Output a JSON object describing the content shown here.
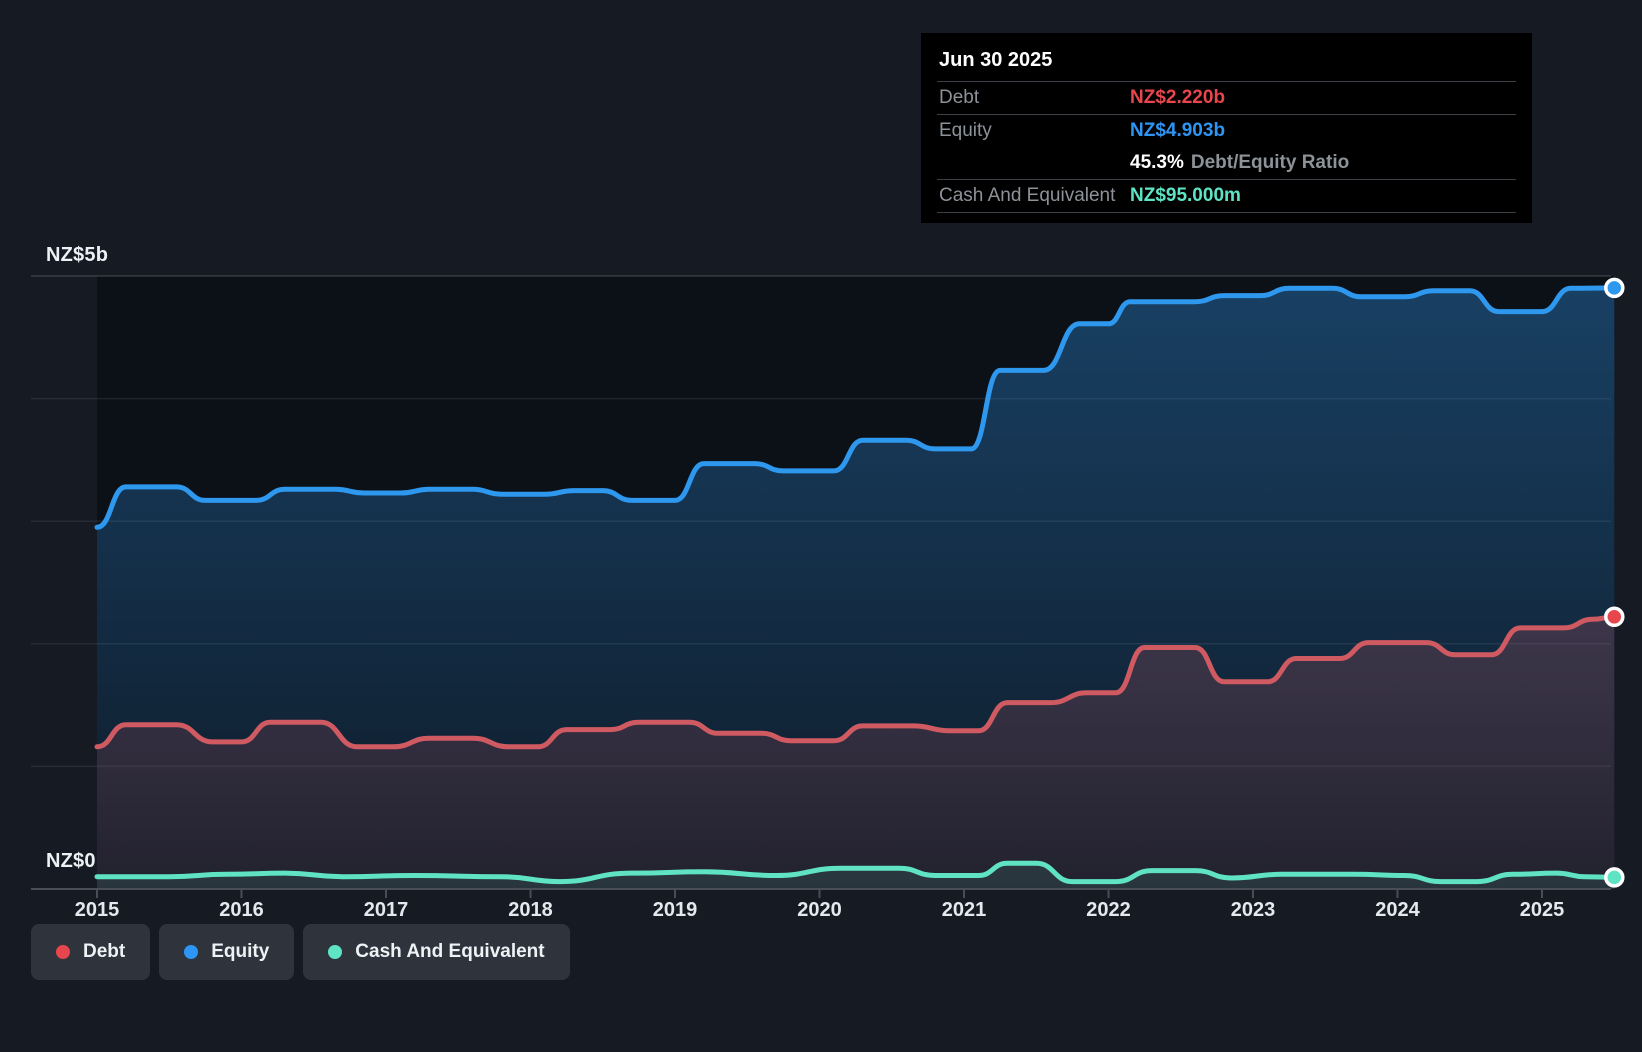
{
  "tooltip": {
    "date": "Jun 30 2025",
    "debt_label": "Debt",
    "debt_value": "NZ$2.220b",
    "equity_label": "Equity",
    "equity_value": "NZ$4.903b",
    "ratio_value": "45.3%",
    "ratio_label": "Debt/Equity Ratio",
    "cash_label": "Cash And Equivalent",
    "cash_value": "NZ$95.000m"
  },
  "legend": {
    "debt": "Debt",
    "equity": "Equity",
    "cash": "Cash And Equivalent"
  },
  "colors": {
    "debt_accent": "#e8464d",
    "debt_line": "#d05a62",
    "equity_accent": "#2d96f5",
    "equity_line": "#2e97ee",
    "cash_accent": "#5ee4c5",
    "cash_line": "#5fe3c3",
    "page_background": "#151a23",
    "plot_background": "#0c1017",
    "tooltip_background": "#000000"
  },
  "y_axis": {
    "top_label": "NZ$5b",
    "bottom_label": "NZ$0"
  },
  "chart_data": {
    "type": "area",
    "x_unit": "decimal_year",
    "y_unit": "NZ$ billions",
    "ylim": [
      0,
      5
    ],
    "grid": "horizontal, every NZ$1b (only NZ$5b and NZ$0 labeled)",
    "legend_position": "bottom-left",
    "x_ticks": [
      "2015",
      "2016",
      "2017",
      "2018",
      "2019",
      "2020",
      "2021",
      "2022",
      "2023",
      "2024",
      "2025"
    ],
    "y_tick_labels": {
      "top": "NZ$5b",
      "bottom": "NZ$0"
    },
    "end_of_data": 2025.5,
    "series": [
      {
        "name": "Equity",
        "line_color": "#2e97ee",
        "dot_color": "#2e97ee",
        "final_value_label": "NZ$4.903b",
        "points": [
          [
            2015.0,
            2.95
          ],
          [
            2015.2,
            3.28
          ],
          [
            2015.55,
            3.28
          ],
          [
            2015.75,
            3.17
          ],
          [
            2016.1,
            3.17
          ],
          [
            2016.3,
            3.26
          ],
          [
            2016.65,
            3.26
          ],
          [
            2016.85,
            3.23
          ],
          [
            2017.1,
            3.23
          ],
          [
            2017.3,
            3.26
          ],
          [
            2017.6,
            3.26
          ],
          [
            2017.8,
            3.22
          ],
          [
            2018.1,
            3.22
          ],
          [
            2018.3,
            3.25
          ],
          [
            2018.5,
            3.25
          ],
          [
            2018.7,
            3.17
          ],
          [
            2019.0,
            3.17
          ],
          [
            2019.2,
            3.47
          ],
          [
            2019.55,
            3.47
          ],
          [
            2019.75,
            3.41
          ],
          [
            2020.1,
            3.41
          ],
          [
            2020.3,
            3.66
          ],
          [
            2020.6,
            3.66
          ],
          [
            2020.8,
            3.59
          ],
          [
            2021.05,
            3.59
          ],
          [
            2021.25,
            4.23
          ],
          [
            2021.55,
            4.23
          ],
          [
            2021.8,
            4.61
          ],
          [
            2022.0,
            4.61
          ],
          [
            2022.15,
            4.79
          ],
          [
            2022.6,
            4.79
          ],
          [
            2022.8,
            4.84
          ],
          [
            2023.05,
            4.84
          ],
          [
            2023.25,
            4.9
          ],
          [
            2023.55,
            4.9
          ],
          [
            2023.75,
            4.83
          ],
          [
            2024.05,
            4.83
          ],
          [
            2024.25,
            4.88
          ],
          [
            2024.5,
            4.88
          ],
          [
            2024.7,
            4.71
          ],
          [
            2025.0,
            4.71
          ],
          [
            2025.2,
            4.9
          ],
          [
            2025.5,
            4.903
          ]
        ]
      },
      {
        "name": "Debt",
        "line_color": "#d05a62",
        "dot_color": "#e8464d",
        "final_value_label": "NZ$2.220b",
        "points": [
          [
            2015.0,
            1.16
          ],
          [
            2015.2,
            1.34
          ],
          [
            2015.55,
            1.34
          ],
          [
            2015.8,
            1.2
          ],
          [
            2016.0,
            1.2
          ],
          [
            2016.2,
            1.36
          ],
          [
            2016.55,
            1.36
          ],
          [
            2016.8,
            1.16
          ],
          [
            2017.05,
            1.16
          ],
          [
            2017.3,
            1.23
          ],
          [
            2017.6,
            1.23
          ],
          [
            2017.85,
            1.16
          ],
          [
            2018.05,
            1.16
          ],
          [
            2018.25,
            1.3
          ],
          [
            2018.55,
            1.3
          ],
          [
            2018.75,
            1.36
          ],
          [
            2019.1,
            1.36
          ],
          [
            2019.3,
            1.27
          ],
          [
            2019.6,
            1.27
          ],
          [
            2019.8,
            1.21
          ],
          [
            2020.1,
            1.21
          ],
          [
            2020.3,
            1.33
          ],
          [
            2020.65,
            1.33
          ],
          [
            2020.9,
            1.29
          ],
          [
            2021.1,
            1.29
          ],
          [
            2021.3,
            1.52
          ],
          [
            2021.6,
            1.52
          ],
          [
            2021.85,
            1.6
          ],
          [
            2022.05,
            1.6
          ],
          [
            2022.25,
            1.97
          ],
          [
            2022.6,
            1.97
          ],
          [
            2022.8,
            1.69
          ],
          [
            2023.1,
            1.69
          ],
          [
            2023.3,
            1.88
          ],
          [
            2023.6,
            1.88
          ],
          [
            2023.8,
            2.01
          ],
          [
            2024.2,
            2.01
          ],
          [
            2024.4,
            1.91
          ],
          [
            2024.65,
            1.91
          ],
          [
            2024.85,
            2.13
          ],
          [
            2025.15,
            2.13
          ],
          [
            2025.35,
            2.2
          ],
          [
            2025.5,
            2.22
          ]
        ]
      },
      {
        "name": "Cash And Equivalent",
        "line_color": "#5fe3c3",
        "dot_color": "#5ee4c5",
        "final_value_label": "NZ$95.000m",
        "points": [
          [
            2015.0,
            0.1
          ],
          [
            2015.5,
            0.1
          ],
          [
            2015.9,
            0.12
          ],
          [
            2016.3,
            0.13
          ],
          [
            2016.7,
            0.1
          ],
          [
            2017.2,
            0.11
          ],
          [
            2017.8,
            0.1
          ],
          [
            2018.2,
            0.06
          ],
          [
            2018.7,
            0.13
          ],
          [
            2019.2,
            0.14
          ],
          [
            2019.7,
            0.11
          ],
          [
            2020.15,
            0.17
          ],
          [
            2020.55,
            0.17
          ],
          [
            2020.8,
            0.11
          ],
          [
            2021.1,
            0.11
          ],
          [
            2021.3,
            0.21
          ],
          [
            2021.5,
            0.21
          ],
          [
            2021.75,
            0.06
          ],
          [
            2022.05,
            0.06
          ],
          [
            2022.3,
            0.15
          ],
          [
            2022.6,
            0.15
          ],
          [
            2022.85,
            0.09
          ],
          [
            2023.2,
            0.12
          ],
          [
            2023.7,
            0.12
          ],
          [
            2024.05,
            0.11
          ],
          [
            2024.3,
            0.06
          ],
          [
            2024.55,
            0.06
          ],
          [
            2024.8,
            0.12
          ],
          [
            2025.1,
            0.13
          ],
          [
            2025.3,
            0.1
          ],
          [
            2025.5,
            0.095
          ]
        ]
      }
    ]
  }
}
